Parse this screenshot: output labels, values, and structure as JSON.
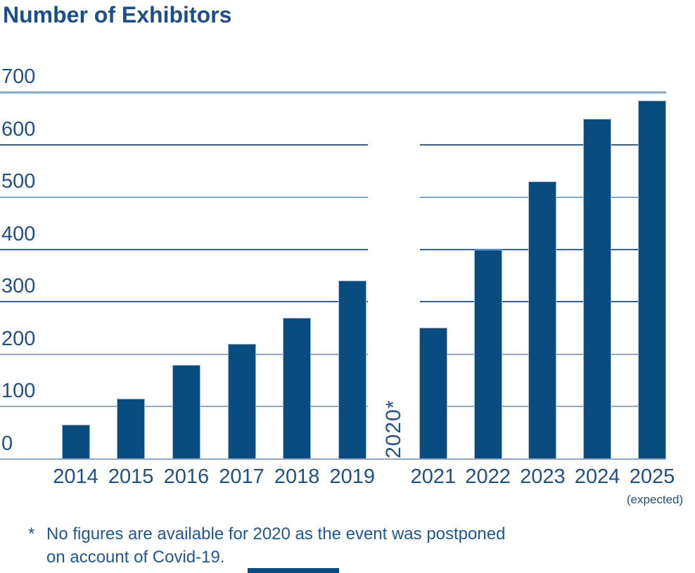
{
  "title": "Number of Exhibitors",
  "chart_data": {
    "type": "bar",
    "title": "Number of Exhibitors",
    "categories": [
      "2014",
      "2015",
      "2016",
      "2017",
      "2018",
      "2019",
      "2020",
      "2021",
      "2022",
      "2023",
      "2024",
      "2025"
    ],
    "values": [
      65,
      115,
      180,
      220,
      270,
      340,
      null,
      250,
      400,
      530,
      650,
      685
    ],
    "xlabel": "",
    "ylabel": "",
    "ylim": [
      0,
      700
    ],
    "yticks": [
      0,
      100,
      200,
      300,
      400,
      500,
      600,
      700
    ],
    "grid": "horizontal",
    "legend": "none",
    "missing_year_label": "2020*",
    "expected_category": "2025",
    "expected_suffix": "(expected)",
    "bar_color": "#084C80",
    "label_color": "#1C508F",
    "title_color": "#1A4F8F",
    "gridline_color_light": "#8FA9C9",
    "gridline_color_dark": "#2E62A3"
  },
  "footnote": {
    "marker": "*",
    "lines": [
      "No figures are available for 2020 as the event was postponed",
      "on account of Covid-19."
    ]
  }
}
